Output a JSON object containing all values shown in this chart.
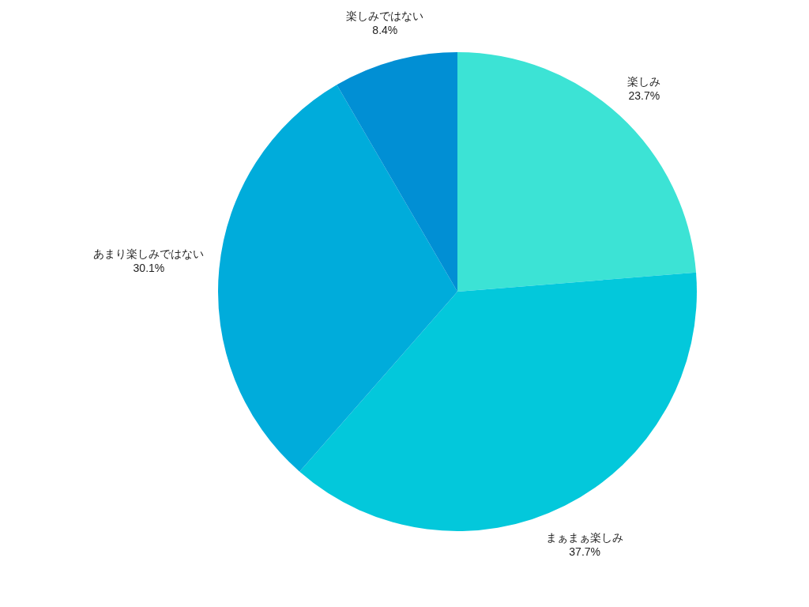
{
  "chart_data": {
    "type": "pie",
    "categories": [
      "楽しみ",
      "まぁまぁ楽しみ",
      "あまり楽しみではない",
      "楽しみではない"
    ],
    "values": [
      23.7,
      37.7,
      30.1,
      8.4
    ],
    "value_labels": [
      "23.7%",
      "37.7%",
      "30.1%",
      "8.4%"
    ],
    "colors": [
      "#3ce3d5",
      "#03c8db",
      "#00acdb",
      "#018fd4"
    ]
  }
}
